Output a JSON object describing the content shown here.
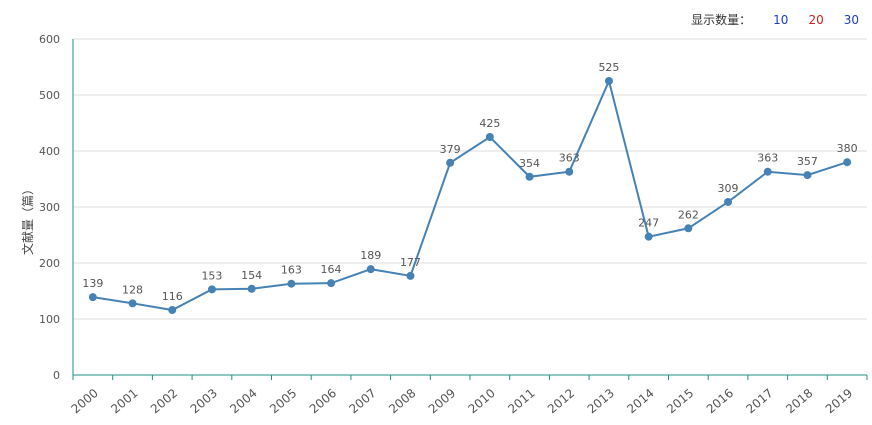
{
  "controls": {
    "label": "显示数量：",
    "options": [
      "10",
      "20",
      "30"
    ],
    "colors": [
      "#1a3fbf",
      "#d32020",
      "#1a3fbf"
    ]
  },
  "chart_data": {
    "type": "line",
    "title": "",
    "xlabel": "",
    "ylabel": "文献量（篇）",
    "ylim": [
      0,
      600
    ],
    "yticks": [
      0,
      100,
      200,
      300,
      400,
      500,
      600
    ],
    "grid": true,
    "categories": [
      "2000",
      "2001",
      "2002",
      "2003",
      "2004",
      "2005",
      "2006",
      "2007",
      "2008",
      "2009",
      "2010",
      "2011",
      "2012",
      "2013",
      "2014",
      "2015",
      "2016",
      "2017",
      "2018",
      "2019"
    ],
    "series": [
      {
        "name": "文献量",
        "color": "#4682b4",
        "values": [
          139,
          128,
          116,
          153,
          154,
          163,
          164,
          189,
          177,
          379,
          425,
          354,
          363,
          525,
          247,
          262,
          309,
          363,
          357,
          380
        ]
      }
    ]
  }
}
